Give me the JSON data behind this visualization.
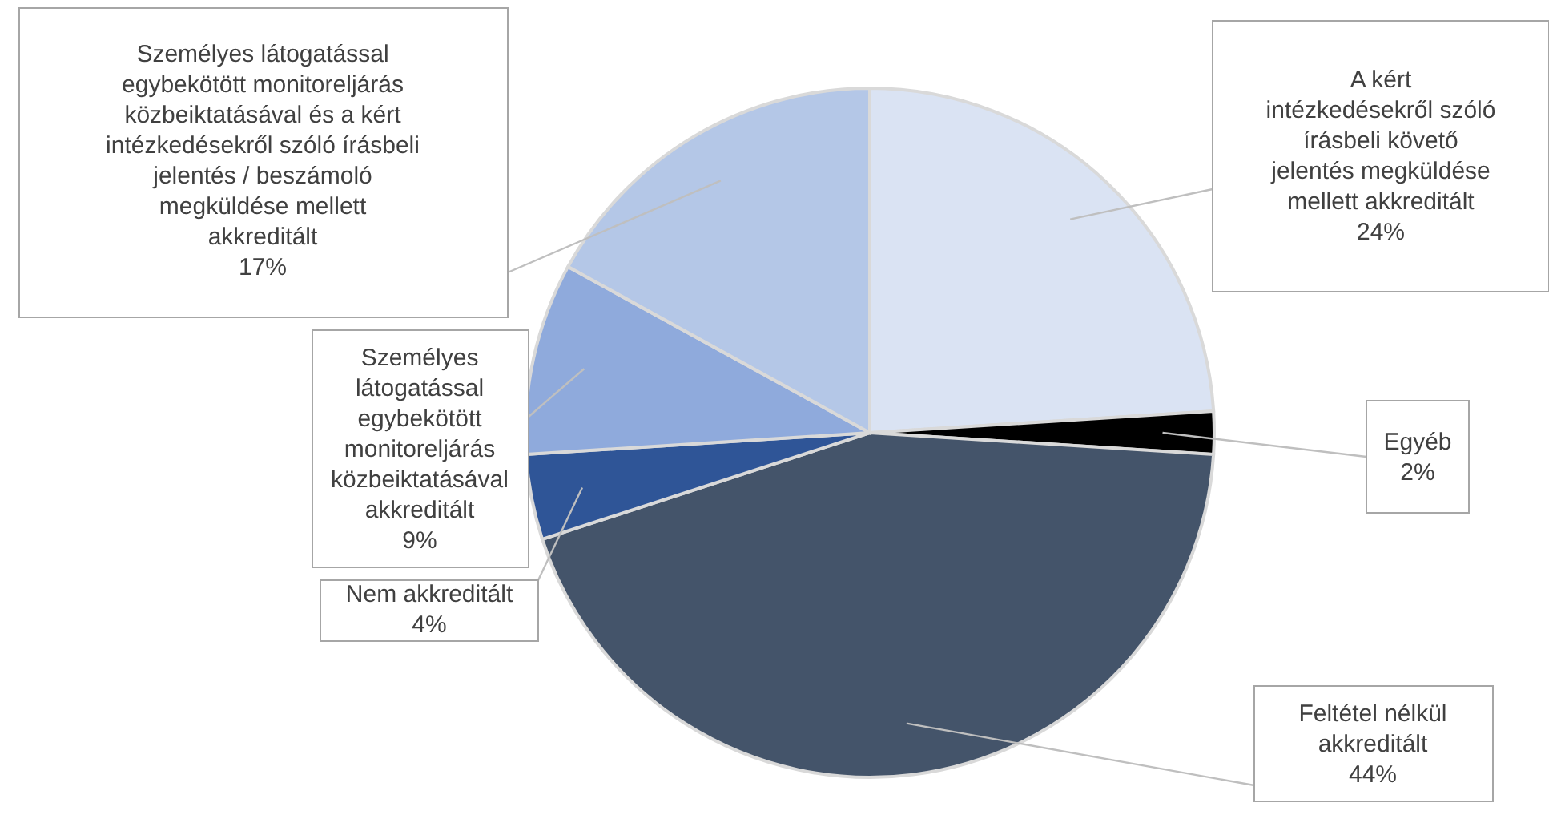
{
  "chart_data": {
    "type": "pie",
    "categories": [
      "A kért intézkedésekről szóló írásbeli követő jelentés megküldése mellett akkreditált",
      "Egyéb",
      "Feltétel nélkül akkreditált",
      "Nem akkreditált",
      "Személyes látogatással egybekötött monitoreljárás közbeiktatásával akkreditált",
      "Személyes látogatással egybekötött monitoreljárás közbeiktatásával és a kért intézkedésekről szóló írásbeli jelentés / beszámoló megküldése mellett akkreditált"
    ],
    "values": [
      24,
      2,
      44,
      4,
      9,
      17
    ],
    "value_labels": [
      "24%",
      "2%",
      "44%",
      "4%",
      "9%",
      "17%"
    ],
    "colors": [
      "#dae3f3",
      "#000000",
      "#44546a",
      "#2f5597",
      "#8faadc",
      "#b4c7e7"
    ]
  }
}
